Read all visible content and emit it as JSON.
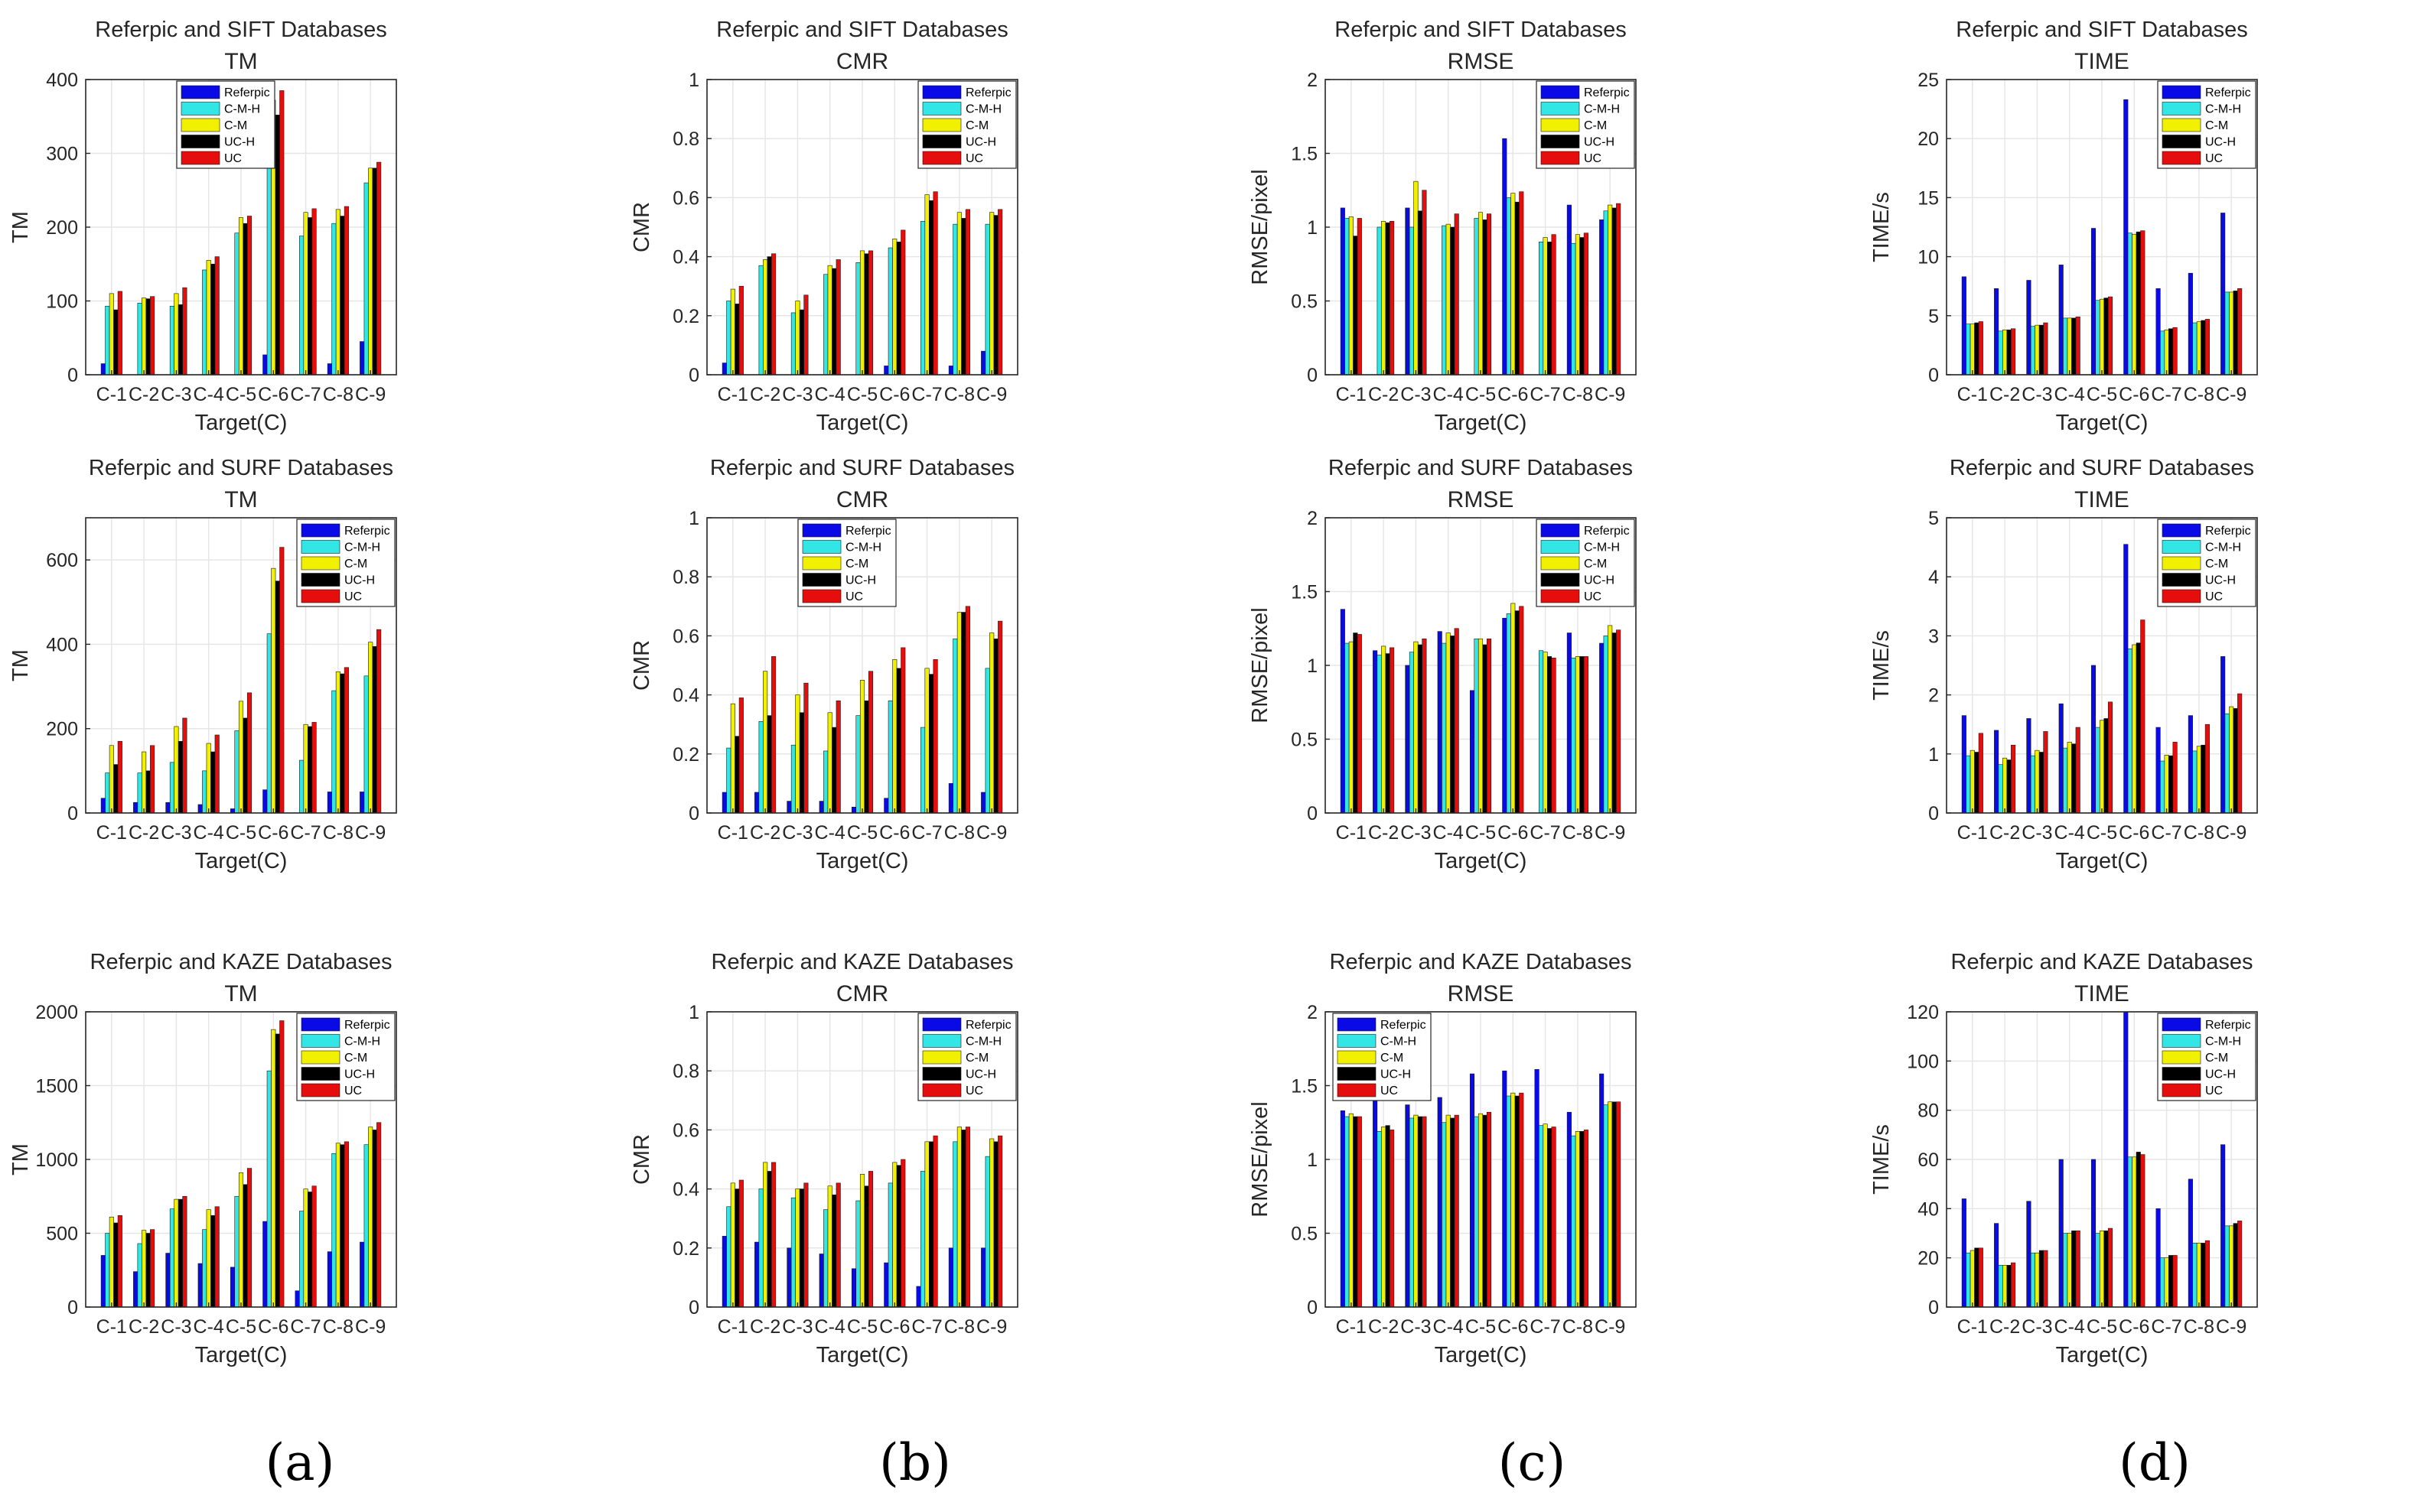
{
  "legend_labels": [
    "Referpic",
    "C-M-H",
    "C-M",
    "UC-H",
    "UC"
  ],
  "series_colors": [
    "#0a0ae6",
    "#33e6e6",
    "#f0f000",
    "#000000",
    "#e60d0d"
  ],
  "categories": [
    "C-1",
    "C-2",
    "C-3",
    "C-4",
    "C-5",
    "C-6",
    "C-7",
    "C-8",
    "C-9"
  ],
  "xlabel": "Target(C)",
  "captions": [
    "(a)",
    "(b)",
    "(c)",
    "(d)"
  ],
  "chart_data": [
    {
      "type": "bar",
      "title": "Referpic and SIFT Databases",
      "subtitle": "TM",
      "ylabel": "TM",
      "ylim": [
        0,
        400
      ],
      "yticks": [
        0,
        100,
        200,
        300,
        400
      ],
      "legend": "top-center",
      "series": [
        {
          "name": "Referpic",
          "values": [
            15,
            0,
            0,
            0,
            0,
            27,
            0,
            15,
            45
          ]
        },
        {
          "name": "C-M-H",
          "values": [
            93,
            97,
            93,
            142,
            192,
            338,
            188,
            205,
            260
          ]
        },
        {
          "name": "C-M",
          "values": [
            110,
            104,
            110,
            155,
            213,
            372,
            220,
            224,
            280
          ]
        },
        {
          "name": "UC-H",
          "values": [
            88,
            103,
            95,
            150,
            205,
            352,
            213,
            215,
            280
          ]
        },
        {
          "name": "UC",
          "values": [
            113,
            106,
            118,
            160,
            215,
            385,
            225,
            228,
            288
          ]
        }
      ]
    },
    {
      "type": "bar",
      "title": "Referpic and SIFT Databases",
      "subtitle": "CMR",
      "ylabel": "CMR",
      "ylim": [
        0,
        1
      ],
      "yticks": [
        0,
        0.2,
        0.4,
        0.6,
        0.8,
        1
      ],
      "legend": "top-right",
      "series": [
        {
          "name": "Referpic",
          "values": [
            0.04,
            0,
            0,
            0,
            0,
            0.03,
            0,
            0.03,
            0.08
          ]
        },
        {
          "name": "C-M-H",
          "values": [
            0.25,
            0.37,
            0.21,
            0.34,
            0.38,
            0.43,
            0.52,
            0.51,
            0.51
          ]
        },
        {
          "name": "C-M",
          "values": [
            0.29,
            0.39,
            0.25,
            0.37,
            0.42,
            0.46,
            0.61,
            0.55,
            0.55
          ]
        },
        {
          "name": "UC-H",
          "values": [
            0.24,
            0.4,
            0.22,
            0.36,
            0.41,
            0.45,
            0.59,
            0.53,
            0.54
          ]
        },
        {
          "name": "UC",
          "values": [
            0.3,
            0.41,
            0.27,
            0.39,
            0.42,
            0.49,
            0.62,
            0.56,
            0.56
          ]
        }
      ]
    },
    {
      "type": "bar",
      "title": "Referpic and SIFT Databases",
      "subtitle": "RMSE",
      "ylabel": "RMSE/pixel",
      "ylim": [
        0,
        2
      ],
      "yticks": [
        0,
        0.5,
        1,
        1.5,
        2
      ],
      "legend": "top-right",
      "series": [
        {
          "name": "Referpic",
          "values": [
            1.13,
            0,
            1.13,
            0,
            0,
            1.6,
            0,
            1.15,
            1.05
          ]
        },
        {
          "name": "C-M-H",
          "values": [
            1.06,
            1.0,
            1.0,
            1.01,
            1.06,
            1.2,
            0.9,
            0.89,
            1.11
          ]
        },
        {
          "name": "C-M",
          "values": [
            1.07,
            1.04,
            1.31,
            1.02,
            1.1,
            1.23,
            0.93,
            0.95,
            1.15
          ]
        },
        {
          "name": "UC-H",
          "values": [
            0.94,
            1.03,
            1.11,
            1.0,
            1.05,
            1.17,
            0.9,
            0.93,
            1.13
          ]
        },
        {
          "name": "UC",
          "values": [
            1.06,
            1.04,
            1.25,
            1.09,
            1.09,
            1.24,
            0.95,
            0.96,
            1.16
          ]
        }
      ]
    },
    {
      "type": "bar",
      "title": "Referpic and SIFT Databases",
      "subtitle": "TIME",
      "ylabel": "TIME/s",
      "ylim": [
        0,
        25
      ],
      "yticks": [
        0,
        5,
        10,
        15,
        20,
        25
      ],
      "legend": "top-right",
      "series": [
        {
          "name": "Referpic",
          "values": [
            8.3,
            7.3,
            8.0,
            9.3,
            12.4,
            23.3,
            7.3,
            8.6,
            13.7
          ]
        },
        {
          "name": "C-M-H",
          "values": [
            4.3,
            3.7,
            4.1,
            4.8,
            6.3,
            12.0,
            3.7,
            4.4,
            7.0
          ]
        },
        {
          "name": "C-M",
          "values": [
            4.3,
            3.8,
            4.2,
            4.8,
            6.4,
            11.9,
            3.8,
            4.5,
            7.0
          ]
        },
        {
          "name": "UC-H",
          "values": [
            4.4,
            3.8,
            4.2,
            4.8,
            6.5,
            12.1,
            3.9,
            4.6,
            7.1
          ]
        },
        {
          "name": "UC",
          "values": [
            4.5,
            3.9,
            4.4,
            4.9,
            6.6,
            12.2,
            4.0,
            4.7,
            7.3
          ]
        }
      ]
    },
    {
      "type": "bar",
      "title": "Referpic and SURF Databases",
      "subtitle": "TM",
      "ylabel": "TM",
      "ylim": [
        0,
        700
      ],
      "yticks": [
        0,
        200,
        400,
        600
      ],
      "legend": "top-right",
      "series": [
        {
          "name": "Referpic",
          "values": [
            35,
            25,
            25,
            20,
            10,
            55,
            0,
            50,
            50
          ]
        },
        {
          "name": "C-M-H",
          "values": [
            95,
            95,
            120,
            100,
            195,
            425,
            125,
            290,
            325
          ]
        },
        {
          "name": "C-M",
          "values": [
            160,
            145,
            205,
            165,
            265,
            580,
            210,
            335,
            405
          ]
        },
        {
          "name": "UC-H",
          "values": [
            115,
            100,
            170,
            145,
            225,
            550,
            205,
            330,
            395
          ]
        },
        {
          "name": "UC",
          "values": [
            170,
            160,
            225,
            185,
            285,
            630,
            215,
            345,
            435
          ]
        }
      ]
    },
    {
      "type": "bar",
      "title": "Referpic and SURF Databases",
      "subtitle": "CMR",
      "ylabel": "CMR",
      "ylim": [
        0,
        1
      ],
      "yticks": [
        0,
        0.2,
        0.4,
        0.6,
        0.8,
        1
      ],
      "legend": "top-center",
      "series": [
        {
          "name": "Referpic",
          "values": [
            0.07,
            0.07,
            0.04,
            0.04,
            0.02,
            0.05,
            0,
            0.1,
            0.07
          ]
        },
        {
          "name": "C-M-H",
          "values": [
            0.22,
            0.31,
            0.23,
            0.21,
            0.33,
            0.38,
            0.29,
            0.59,
            0.49
          ]
        },
        {
          "name": "C-M",
          "values": [
            0.37,
            0.48,
            0.4,
            0.34,
            0.45,
            0.52,
            0.49,
            0.68,
            0.61
          ]
        },
        {
          "name": "UC-H",
          "values": [
            0.26,
            0.33,
            0.34,
            0.29,
            0.38,
            0.49,
            0.47,
            0.68,
            0.59
          ]
        },
        {
          "name": "UC",
          "values": [
            0.39,
            0.53,
            0.44,
            0.38,
            0.48,
            0.56,
            0.52,
            0.7,
            0.65
          ]
        }
      ]
    },
    {
      "type": "bar",
      "title": "Referpic and SURF Databases",
      "subtitle": "RMSE",
      "ylabel": "RMSE/pixel",
      "ylim": [
        0,
        2
      ],
      "yticks": [
        0,
        0.5,
        1,
        1.5,
        2
      ],
      "legend": "top-right",
      "series": [
        {
          "name": "Referpic",
          "values": [
            1.38,
            1.1,
            1.0,
            1.23,
            0.83,
            1.32,
            0,
            1.22,
            1.15
          ]
        },
        {
          "name": "C-M-H",
          "values": [
            1.15,
            1.07,
            1.09,
            1.15,
            1.18,
            1.35,
            1.1,
            1.05,
            1.2
          ]
        },
        {
          "name": "C-M",
          "values": [
            1.16,
            1.13,
            1.16,
            1.22,
            1.18,
            1.42,
            1.09,
            1.06,
            1.27
          ]
        },
        {
          "name": "UC-H",
          "values": [
            1.22,
            1.08,
            1.14,
            1.2,
            1.14,
            1.37,
            1.06,
            1.06,
            1.22
          ]
        },
        {
          "name": "UC",
          "values": [
            1.21,
            1.12,
            1.18,
            1.25,
            1.18,
            1.4,
            1.05,
            1.06,
            1.24
          ]
        }
      ]
    },
    {
      "type": "bar",
      "title": "Referpic and SURF Databases",
      "subtitle": "TIME",
      "ylabel": "TIME/s",
      "ylim": [
        0,
        5
      ],
      "yticks": [
        0,
        1,
        2,
        3,
        4,
        5
      ],
      "legend": "top-right",
      "series": [
        {
          "name": "Referpic",
          "values": [
            1.65,
            1.4,
            1.6,
            1.85,
            2.5,
            4.55,
            1.45,
            1.65,
            2.65
          ]
        },
        {
          "name": "C-M-H",
          "values": [
            0.97,
            0.82,
            0.97,
            1.1,
            1.45,
            2.78,
            0.88,
            1.05,
            1.68
          ]
        },
        {
          "name": "C-M",
          "values": [
            1.06,
            0.93,
            1.06,
            1.2,
            1.57,
            2.85,
            0.98,
            1.13,
            1.8
          ]
        },
        {
          "name": "UC-H",
          "values": [
            1.03,
            0.9,
            1.03,
            1.17,
            1.6,
            2.88,
            0.97,
            1.15,
            1.77
          ]
        },
        {
          "name": "UC",
          "values": [
            1.35,
            1.15,
            1.38,
            1.45,
            1.88,
            3.27,
            1.2,
            1.5,
            2.02
          ]
        }
      ]
    },
    {
      "type": "bar",
      "title": "Referpic and KAZE Databases",
      "subtitle": "TM",
      "ylabel": "TM",
      "ylim": [
        0,
        2000
      ],
      "yticks": [
        0,
        500,
        1000,
        1500,
        2000
      ],
      "legend": "top-right",
      "series": [
        {
          "name": "Referpic",
          "values": [
            350,
            240,
            365,
            295,
            270,
            580,
            110,
            375,
            440
          ]
        },
        {
          "name": "C-M-H",
          "values": [
            500,
            430,
            665,
            525,
            750,
            1600,
            650,
            1040,
            1100
          ]
        },
        {
          "name": "C-M",
          "values": [
            610,
            520,
            730,
            660,
            910,
            1880,
            800,
            1110,
            1220
          ]
        },
        {
          "name": "UC-H",
          "values": [
            570,
            500,
            730,
            620,
            830,
            1850,
            780,
            1100,
            1200
          ]
        },
        {
          "name": "UC",
          "values": [
            620,
            525,
            750,
            680,
            940,
            1940,
            820,
            1120,
            1250
          ]
        }
      ]
    },
    {
      "type": "bar",
      "title": "Referpic and KAZE Databases",
      "subtitle": "CMR",
      "ylabel": "CMR",
      "ylim": [
        0,
        1
      ],
      "yticks": [
        0,
        0.2,
        0.4,
        0.6,
        0.8,
        1
      ],
      "legend": "top-right",
      "series": [
        {
          "name": "Referpic",
          "values": [
            0.24,
            0.22,
            0.2,
            0.18,
            0.13,
            0.15,
            0.07,
            0.2,
            0.2
          ]
        },
        {
          "name": "C-M-H",
          "values": [
            0.34,
            0.4,
            0.37,
            0.33,
            0.36,
            0.42,
            0.46,
            0.56,
            0.51
          ]
        },
        {
          "name": "C-M",
          "values": [
            0.42,
            0.49,
            0.4,
            0.41,
            0.45,
            0.49,
            0.56,
            0.61,
            0.57
          ]
        },
        {
          "name": "UC-H",
          "values": [
            0.4,
            0.46,
            0.4,
            0.38,
            0.41,
            0.48,
            0.56,
            0.6,
            0.56
          ]
        },
        {
          "name": "UC",
          "values": [
            0.43,
            0.49,
            0.42,
            0.42,
            0.46,
            0.5,
            0.58,
            0.61,
            0.58
          ]
        }
      ]
    },
    {
      "type": "bar",
      "title": "Referpic and KAZE Databases",
      "subtitle": "RMSE",
      "ylabel": "RMSE/pixel",
      "ylim": [
        0,
        2
      ],
      "yticks": [
        0,
        0.5,
        1,
        1.5,
        2
      ],
      "legend": "top-left",
      "series": [
        {
          "name": "Referpic",
          "values": [
            1.33,
            1.4,
            1.37,
            1.42,
            1.58,
            1.6,
            1.61,
            1.32,
            1.58
          ]
        },
        {
          "name": "C-M-H",
          "values": [
            1.29,
            1.19,
            1.28,
            1.25,
            1.29,
            1.43,
            1.23,
            1.16,
            1.37
          ]
        },
        {
          "name": "C-M",
          "values": [
            1.31,
            1.22,
            1.3,
            1.3,
            1.31,
            1.45,
            1.24,
            1.19,
            1.39
          ]
        },
        {
          "name": "UC-H",
          "values": [
            1.29,
            1.23,
            1.29,
            1.28,
            1.3,
            1.43,
            1.21,
            1.19,
            1.39
          ]
        },
        {
          "name": "UC",
          "values": [
            1.29,
            1.2,
            1.29,
            1.3,
            1.32,
            1.45,
            1.22,
            1.2,
            1.39
          ]
        }
      ]
    },
    {
      "type": "bar",
      "title": "Referpic and KAZE Databases",
      "subtitle": "TIME",
      "ylabel": "TIME/s",
      "ylim": [
        0,
        120
      ],
      "yticks": [
        0,
        20,
        40,
        60,
        80,
        100,
        120
      ],
      "legend": "top-right",
      "series": [
        {
          "name": "Referpic",
          "values": [
            44,
            34,
            43,
            60,
            60,
            120,
            40,
            52,
            66
          ]
        },
        {
          "name": "C-M-H",
          "values": [
            22,
            17,
            22,
            30,
            30,
            61,
            20,
            26,
            33
          ]
        },
        {
          "name": "C-M",
          "values": [
            23,
            17,
            22,
            30,
            31,
            61,
            20,
            26,
            33
          ]
        },
        {
          "name": "UC-H",
          "values": [
            24,
            17,
            23,
            31,
            31,
            63,
            21,
            26,
            34
          ]
        },
        {
          "name": "UC",
          "values": [
            24,
            18,
            23,
            31,
            32,
            62,
            21,
            27,
            35
          ]
        }
      ]
    }
  ]
}
